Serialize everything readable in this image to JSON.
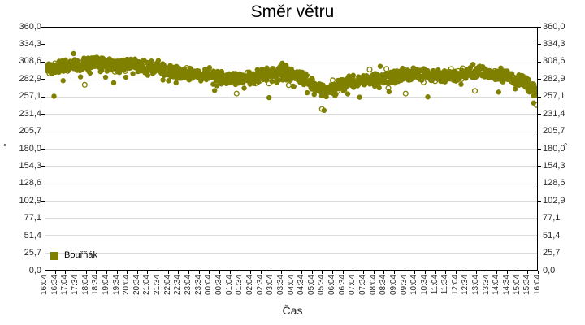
{
  "title": "Směr větru",
  "chart_data": {
    "type": "scatter",
    "title": "Směr větru",
    "xlabel": "Čas",
    "ylabel": "°",
    "ylim": [
      0,
      360
    ],
    "grid": "horizontal",
    "gridline_color": "#dcdcdc",
    "background": "#ffffff",
    "legend_position": "bottom-left-inside",
    "y_ticks": [
      {
        "value": 360,
        "label": "360,0"
      },
      {
        "value": 334.3,
        "label": "334,3"
      },
      {
        "value": 308.6,
        "label": "308,6"
      },
      {
        "value": 282.9,
        "label": "282,9"
      },
      {
        "value": 257.1,
        "label": "257,1"
      },
      {
        "value": 231.4,
        "label": "231,4"
      },
      {
        "value": 205.7,
        "label": "205,7"
      },
      {
        "value": 180,
        "label": "180,0"
      },
      {
        "value": 154.3,
        "label": "154,3"
      },
      {
        "value": 128.6,
        "label": "128,6"
      },
      {
        "value": 102.9,
        "label": "102,9"
      },
      {
        "value": 77.1,
        "label": "77,1"
      },
      {
        "value": 51.4,
        "label": "51,4"
      },
      {
        "value": 25.7,
        "label": "25,7"
      },
      {
        "value": 0,
        "label": "0,0"
      }
    ],
    "x_ticks": [
      "16:04",
      "16:34",
      "17:04",
      "17:34",
      "18:04",
      "18:34",
      "19:04",
      "19:34",
      "20:04",
      "20:34",
      "21:04",
      "21:34",
      "22:04",
      "22:34",
      "23:04",
      "23:34",
      "00:04",
      "00:34",
      "01:04",
      "01:34",
      "02:04",
      "02:34",
      "03:04",
      "03:34",
      "04:04",
      "04:34",
      "05:04",
      "05:34",
      "06:04",
      "06:34",
      "07:04",
      "07:34",
      "08:04",
      "08:34",
      "09:04",
      "09:34",
      "10:04",
      "10:34",
      "11:04",
      "11:34",
      "12:04",
      "12:34",
      "13:04",
      "13:34",
      "14:04",
      "14:34",
      "15:04",
      "15:34",
      "16:04"
    ],
    "x_span_minutes": 1440,
    "series": [
      {
        "name": "Bouřňák",
        "color": "#808000",
        "marker": "circle-filled-and-hollow",
        "points": 1440,
        "scatter_spread_deg": 11,
        "trend": [
          [
            0,
            298
          ],
          [
            30,
            303
          ],
          [
            60,
            303
          ],
          [
            120,
            306
          ],
          [
            180,
            305
          ],
          [
            240,
            304
          ],
          [
            300,
            302
          ],
          [
            360,
            296
          ],
          [
            420,
            291
          ],
          [
            480,
            289
          ],
          [
            540,
            283
          ],
          [
            600,
            286
          ],
          [
            660,
            293
          ],
          [
            700,
            292
          ],
          [
            740,
            288
          ],
          [
            780,
            278
          ],
          [
            810,
            267
          ],
          [
            830,
            266
          ],
          [
            860,
            274
          ],
          [
            900,
            279
          ],
          [
            960,
            283
          ],
          [
            1020,
            287
          ],
          [
            1080,
            292
          ],
          [
            1140,
            289
          ],
          [
            1200,
            289
          ],
          [
            1260,
            294
          ],
          [
            1320,
            291
          ],
          [
            1360,
            287
          ],
          [
            1400,
            281
          ],
          [
            1420,
            272
          ],
          [
            1440,
            263
          ]
        ],
        "outliers": [
          [
            25,
            258
          ],
          [
            115,
            275
          ],
          [
            200,
            278
          ],
          [
            560,
            262
          ],
          [
            655,
            256
          ],
          [
            810,
            239
          ],
          [
            816,
            237
          ],
          [
            1055,
            262
          ],
          [
            1120,
            257
          ],
          [
            1258,
            266
          ],
          [
            1430,
            248
          ],
          [
            1438,
            245
          ]
        ]
      }
    ]
  }
}
